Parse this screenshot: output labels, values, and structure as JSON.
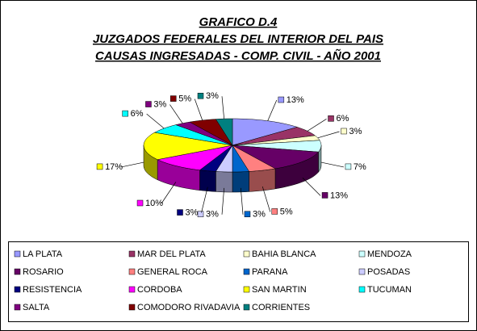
{
  "chart_data": {
    "type": "pie",
    "title": [
      "GRAFICO D.4",
      "JUZGADOS FEDERALES DEL INTERIOR DEL PAIS",
      "CAUSAS INGRESADAS - COMP. CIVIL - AÑO 2001"
    ],
    "categories": [
      "LA PLATA",
      "MAR DEL PLATA",
      "BAHIA BLANCA",
      "MENDOZA",
      "ROSARIO",
      "GENERAL ROCA",
      "PARANA",
      "POSADAS",
      "RESISTENCIA",
      "CORDOBA",
      "SAN MARTIN",
      "TUCUMAN",
      "SALTA",
      "COMODORO RIVADAVIA",
      "CORRIENTES"
    ],
    "values": [
      13,
      6,
      3,
      7,
      13,
      5,
      3,
      3,
      3,
      10,
      17,
      6,
      3,
      5,
      3
    ],
    "value_labels": [
      "13%",
      "6%",
      "3%",
      "7%",
      "13%",
      "5%",
      "3%",
      "3%",
      "3%",
      "10%",
      "17%",
      "6%",
      "3%",
      "5%",
      "3%"
    ],
    "colors": [
      "#9999ff",
      "#993366",
      "#ffffcc",
      "#ccffff",
      "#660066",
      "#ff8080",
      "#0066cc",
      "#ccccff",
      "#000080",
      "#ff00ff",
      "#ffff00",
      "#00ffff",
      "#800080",
      "#800000",
      "#008080"
    ],
    "legend": "bottom"
  }
}
